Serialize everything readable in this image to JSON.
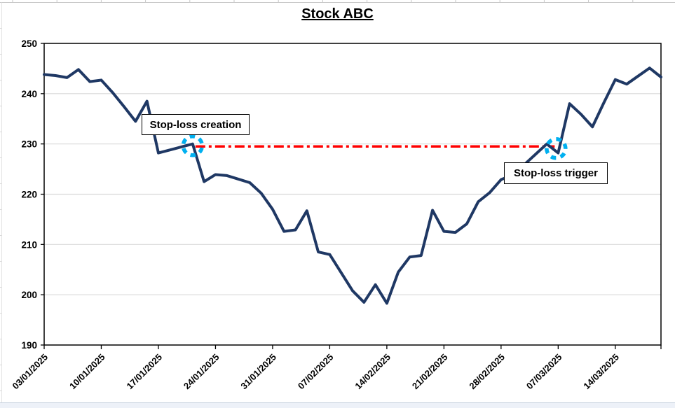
{
  "chart_data": {
    "type": "line",
    "title": "Stock ABC",
    "xlabel": "",
    "ylabel": "",
    "ylim": [
      190,
      250
    ],
    "y_ticks": [
      190,
      200,
      210,
      220,
      230,
      240,
      250
    ],
    "grid": "horizontal",
    "legend": "none",
    "x": [
      "03/01/2025",
      "06/01/2025",
      "07/01/2025",
      "08/01/2025",
      "09/01/2025",
      "10/01/2025",
      "13/01/2025",
      "14/01/2025",
      "15/01/2025",
      "16/01/2025",
      "17/01/2025",
      "20/01/2025",
      "21/01/2025",
      "22/01/2025",
      "23/01/2025",
      "24/01/2025",
      "27/01/2025",
      "28/01/2025",
      "29/01/2025",
      "30/01/2025",
      "31/01/2025",
      "03/02/2025",
      "04/02/2025",
      "05/02/2025",
      "06/02/2025",
      "07/02/2025",
      "10/02/2025",
      "11/02/2025",
      "12/02/2025",
      "13/02/2025",
      "14/02/2025",
      "17/02/2025",
      "18/02/2025",
      "19/02/2025",
      "20/02/2025",
      "21/02/2025",
      "24/02/2025",
      "25/02/2025",
      "26/02/2025",
      "27/02/2025",
      "28/02/2025",
      "03/03/2025",
      "04/03/2025",
      "05/03/2025",
      "06/03/2025",
      "07/03/2025",
      "10/03/2025",
      "11/03/2025",
      "12/03/2025",
      "13/03/2025",
      "14/03/2025",
      "17/03/2025",
      "18/03/2025",
      "19/03/2025",
      "20/03/2025"
    ],
    "x_tick_labels": [
      "03/01/2025",
      "10/01/2025",
      "17/01/2025",
      "24/01/2025",
      "31/01/2025",
      "07/02/2025",
      "14/02/2025",
      "21/02/2025",
      "28/02/2025",
      "07/03/2025",
      "14/03/2025"
    ],
    "x_tick_label_indices": [
      0,
      5,
      10,
      15,
      20,
      25,
      30,
      35,
      40,
      45,
      50
    ],
    "series": [
      {
        "name": "Stock ABC",
        "color": "#1f3864",
        "values": [
          243.8,
          243.6,
          243.2,
          244.8,
          242.4,
          242.7,
          240.2,
          237.4,
          234.5,
          238.5,
          228.2,
          228.8,
          229.4,
          230.0,
          222.5,
          223.9,
          223.7,
          223.0,
          222.3,
          220.2,
          217.0,
          212.6,
          212.9,
          216.7,
          208.5,
          208.0,
          204.4,
          200.8,
          198.5,
          202.0,
          198.3,
          204.5,
          207.5,
          207.8,
          216.8,
          212.6,
          212.4,
          214.1,
          218.5,
          220.3,
          222.9,
          223.8,
          225.8,
          227.9,
          230.0,
          228.2,
          238.0,
          235.9,
          233.4,
          238.2,
          242.8,
          241.9,
          243.5,
          245.1,
          243.3
        ]
      }
    ],
    "annotations": {
      "stop_loss_level": 229.5,
      "level_line_color": "#ff0000",
      "level_line_style": "dash-dot",
      "marker_circle_color": "#00b0f0",
      "creation": {
        "label": "Stop-loss creation",
        "date": "22/01/2025",
        "index": 13
      },
      "trigger": {
        "label": "Stop-loss trigger",
        "date": "07/03/2025",
        "index": 45
      }
    },
    "colors": {
      "gridline": "#d9d9d9",
      "plot_border": "#000000",
      "tick_label": "#000000"
    }
  }
}
